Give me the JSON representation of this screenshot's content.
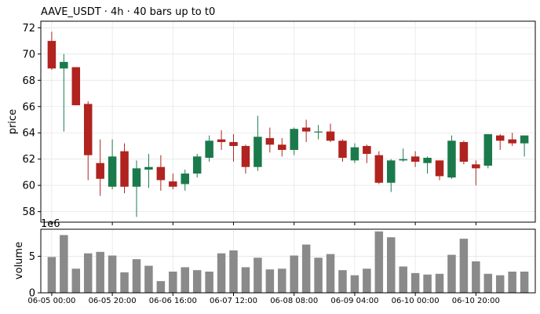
{
  "title": "AAVE_USDT  ·  4h  ·  40 bars up to t0",
  "colors": {
    "up": "#1a7a4c",
    "down": "#b0231f",
    "volume": "#8a8a8a",
    "grid": "#e6e6e6"
  },
  "chart_data": [
    {
      "type": "candlestick",
      "ylabel": "price",
      "ylim": [
        57.2,
        72.5
      ],
      "yticks": [
        "58",
        "60",
        "62",
        "64",
        "66",
        "68",
        "70",
        "72"
      ],
      "grid": true,
      "ohlc": [
        [
          71.0,
          71.7,
          68.8,
          68.9
        ],
        [
          68.9,
          70.0,
          64.1,
          69.4
        ],
        [
          69.0,
          69.0,
          66.1,
          66.1
        ],
        [
          66.2,
          66.4,
          60.4,
          62.3
        ],
        [
          61.7,
          63.5,
          59.2,
          60.5
        ],
        [
          59.9,
          63.5,
          59.7,
          62.2
        ],
        [
          62.6,
          63.2,
          59.4,
          59.9
        ],
        [
          59.9,
          61.9,
          57.6,
          61.3
        ],
        [
          61.2,
          62.4,
          59.8,
          61.4
        ],
        [
          61.4,
          62.3,
          59.6,
          60.4
        ],
        [
          60.3,
          60.9,
          59.7,
          59.9
        ],
        [
          60.1,
          61.2,
          59.6,
          60.9
        ],
        [
          60.9,
          62.4,
          60.6,
          62.2
        ],
        [
          62.1,
          63.8,
          61.8,
          63.4
        ],
        [
          63.5,
          64.2,
          62.7,
          63.3
        ],
        [
          63.3,
          63.9,
          61.8,
          63.0
        ],
        [
          63.0,
          63.1,
          60.9,
          61.4
        ],
        [
          61.4,
          65.3,
          61.1,
          63.7
        ],
        [
          63.6,
          64.4,
          62.5,
          63.1
        ],
        [
          63.1,
          63.6,
          62.2,
          62.7
        ],
        [
          62.7,
          64.4,
          62.3,
          64.3
        ],
        [
          64.4,
          65.0,
          63.3,
          64.1
        ],
        [
          64.1,
          64.6,
          63.5,
          64.1
        ],
        [
          64.1,
          64.7,
          63.3,
          63.4
        ],
        [
          63.4,
          63.5,
          61.8,
          62.1
        ],
        [
          61.9,
          63.2,
          61.7,
          62.9
        ],
        [
          63.0,
          63.1,
          61.7,
          62.4
        ],
        [
          62.3,
          62.6,
          60.1,
          60.2
        ],
        [
          60.2,
          62.0,
          59.5,
          61.9
        ],
        [
          61.9,
          62.8,
          61.8,
          62.0
        ],
        [
          62.2,
          62.6,
          61.4,
          61.8
        ],
        [
          61.7,
          62.2,
          60.9,
          62.1
        ],
        [
          61.9,
          61.9,
          60.4,
          60.7
        ],
        [
          60.6,
          63.8,
          60.5,
          63.4
        ],
        [
          63.3,
          63.4,
          61.6,
          61.8
        ],
        [
          61.6,
          61.9,
          60.0,
          61.3
        ],
        [
          61.5,
          63.9,
          61.3,
          63.9
        ],
        [
          63.8,
          63.9,
          62.7,
          63.4
        ],
        [
          63.5,
          64.0,
          63.0,
          63.2
        ],
        [
          63.2,
          63.8,
          62.2,
          63.8
        ]
      ]
    },
    {
      "type": "bar",
      "ylabel": "volume",
      "scale_label": "1e6",
      "ylim": [
        0,
        8.7
      ],
      "yticks": [
        "0",
        "5"
      ],
      "values": [
        4.9,
        7.9,
        3.3,
        5.4,
        5.6,
        5.1,
        2.8,
        4.6,
        3.7,
        1.6,
        2.9,
        3.5,
        3.1,
        2.9,
        5.4,
        5.8,
        3.5,
        4.8,
        3.2,
        3.3,
        5.1,
        6.6,
        4.8,
        5.3,
        3.1,
        2.4,
        3.3,
        8.4,
        7.6,
        3.6,
        2.7,
        2.5,
        2.6,
        5.2,
        7.4,
        4.3,
        2.6,
        2.4,
        2.9,
        2.9
      ],
      "xticks": [
        "06-05 00:00",
        "06-05 20:00",
        "06-06 16:00",
        "06-07 12:00",
        "06-08 08:00",
        "06-09 04:00",
        "06-10 00:00",
        "06-10 20:00"
      ],
      "grid": true
    }
  ]
}
